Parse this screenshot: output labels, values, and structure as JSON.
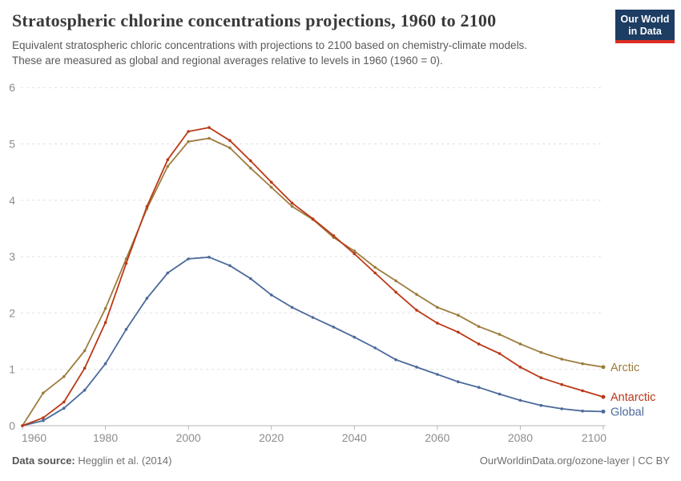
{
  "header": {
    "title": "Stratospheric chlorine concentrations projections, 1960 to 2100",
    "subtitle_line1": "Equivalent stratospheric chloric concentrations with projections to 2100 based on chemistry-climate models.",
    "subtitle_line2": "These are measured as global and regional averages relative to levels in 1960 (1960 = 0).",
    "logo": {
      "line1": "Our World",
      "line2": "in Data",
      "bg_color": "#1d3d63",
      "accent_color": "#dc2e22"
    }
  },
  "chart_data": {
    "type": "line",
    "title": "Stratospheric chlorine concentrations projections, 1960 to 2100",
    "xlabel": "",
    "ylabel": "",
    "x": [
      1960,
      1965,
      1970,
      1975,
      1980,
      1985,
      1990,
      1995,
      2000,
      2005,
      2010,
      2015,
      2020,
      2025,
      2030,
      2035,
      2040,
      2045,
      2050,
      2055,
      2060,
      2065,
      2070,
      2075,
      2080,
      2085,
      2090,
      2095,
      2100
    ],
    "series": [
      {
        "name": "Arctic",
        "color": "#9D7D3E",
        "values": [
          0,
          0.58,
          0.87,
          1.33,
          2.08,
          2.96,
          3.85,
          4.6,
          5.04,
          5.1,
          4.93,
          4.57,
          4.23,
          3.89,
          3.66,
          3.34,
          3.1,
          2.81,
          2.57,
          2.33,
          2.1,
          1.96,
          1.76,
          1.62,
          1.45,
          1.3,
          1.18,
          1.1,
          1.04
        ]
      },
      {
        "name": "Antarctic",
        "color": "#BA3918",
        "values": [
          0,
          0.14,
          0.42,
          1.02,
          1.83,
          2.88,
          3.89,
          4.72,
          5.22,
          5.29,
          5.06,
          4.7,
          4.32,
          3.95,
          3.67,
          3.37,
          3.05,
          2.71,
          2.37,
          2.05,
          1.82,
          1.66,
          1.45,
          1.28,
          1.04,
          0.85,
          0.73,
          0.62,
          0.51
        ]
      },
      {
        "name": "Global",
        "color": "#4C6A9C",
        "values": [
          0,
          0.09,
          0.31,
          0.63,
          1.1,
          1.71,
          2.26,
          2.71,
          2.96,
          2.99,
          2.84,
          2.61,
          2.32,
          2.1,
          1.92,
          1.75,
          1.57,
          1.38,
          1.17,
          1.04,
          0.91,
          0.78,
          0.68,
          0.56,
          0.45,
          0.36,
          0.3,
          0.26,
          0.25
        ]
      }
    ],
    "xlim": [
      1960,
      2100
    ],
    "ylim": [
      0,
      6
    ],
    "yticks": [
      0,
      1,
      2,
      3,
      4,
      5,
      6
    ],
    "xticks": [
      1960,
      1980,
      2000,
      2020,
      2040,
      2060,
      2080,
      2100
    ],
    "grid": "horizontal-dashed",
    "legend_position": "end-of-line-labels",
    "grid_color": "#e0e0e0",
    "axis_color": "#b5b5b5",
    "tick_label_color": "#8d8d8d"
  },
  "footer": {
    "source_label": "Data source:",
    "source_value": "Hegglin et al. (2014)",
    "credit": "OurWorldinData.org/ozone-layer | CC BY"
  }
}
